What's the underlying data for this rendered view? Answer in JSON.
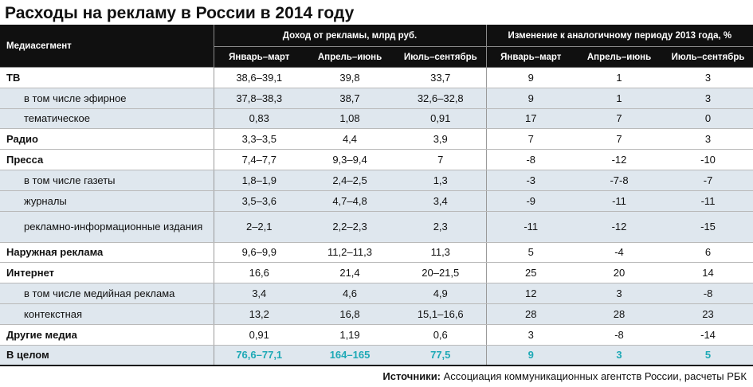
{
  "title": "Расходы на рекламу в России в 2014 году",
  "header": {
    "segment": "Медиасегмент",
    "income_group": "Доход от рекламы, млрд руб.",
    "change_group": "Изменение к аналогичному периоду 2013 года, %",
    "periods": [
      "Январь–март",
      "Апрель–июнь",
      "Июль–сентябрь"
    ]
  },
  "rows": [
    {
      "name": "ТВ",
      "kind": "main",
      "values": [
        "38,6–39,1",
        "39,8",
        "33,7",
        "9",
        "1",
        "3"
      ]
    },
    {
      "name": "в том числе эфирное",
      "kind": "sub",
      "values": [
        "37,8–38,3",
        "38,7",
        "32,6–32,8",
        "9",
        "1",
        "3"
      ]
    },
    {
      "name": "тематическое",
      "kind": "sub",
      "values": [
        "0,83",
        "1,08",
        "0,91",
        "17",
        "7",
        "0"
      ]
    },
    {
      "name": "Радио",
      "kind": "main",
      "values": [
        "3,3–3,5",
        "4,4",
        "3,9",
        "7",
        "7",
        "3"
      ]
    },
    {
      "name": "Пресса",
      "kind": "main",
      "values": [
        "7,4–7,7",
        "9,3–9,4",
        "7",
        "-8",
        "-12",
        "-10"
      ]
    },
    {
      "name": "в том числе газеты",
      "kind": "sub",
      "values": [
        "1,8–1,9",
        "2,4–2,5",
        "1,3",
        "-3",
        "-7-8",
        "-7"
      ]
    },
    {
      "name": "журналы",
      "kind": "sub",
      "values": [
        "3,5–3,6",
        "4,7–4,8",
        "3,4",
        "-9",
        "-11",
        "-11"
      ]
    },
    {
      "name": "рекламно-информационные издания",
      "kind": "sub tall",
      "values": [
        "2–2,1",
        "2,2–2,3",
        "2,3",
        "-11",
        "-12",
        "-15"
      ]
    },
    {
      "name": "Наружная реклама",
      "kind": "main",
      "values": [
        "9,6–9,9",
        "11,2–11,3",
        "11,3",
        "5",
        "-4",
        "6"
      ]
    },
    {
      "name": "Интернет",
      "kind": "main",
      "values": [
        "16,6",
        "21,4",
        "20–21,5",
        "25",
        "20",
        "14"
      ]
    },
    {
      "name": "в том числе медийная реклама",
      "kind": "sub",
      "values": [
        "3,4",
        "4,6",
        "4,9",
        "12",
        "3",
        "-8"
      ]
    },
    {
      "name": "контекстная",
      "kind": "sub",
      "values": [
        "13,2",
        "16,8",
        "15,1–16,6",
        "28",
        "28",
        "23"
      ]
    },
    {
      "name": "Другие медиа",
      "kind": "main",
      "values": [
        "0,91",
        "1,19",
        "0,6",
        "3",
        "-8",
        "-14"
      ]
    },
    {
      "name": "В целом",
      "kind": "total",
      "values": [
        "76,6–77,1",
        "164–165",
        "77,5",
        "9",
        "3",
        "5"
      ]
    }
  ],
  "source": {
    "label": "Источники:",
    "text": "Ассоциация коммуникационных агентств России, расчеты РБК"
  },
  "colors": {
    "header_bg": "#101010",
    "sub_row_bg": "#dfe7ee",
    "total_value": "#1ea9b6"
  }
}
